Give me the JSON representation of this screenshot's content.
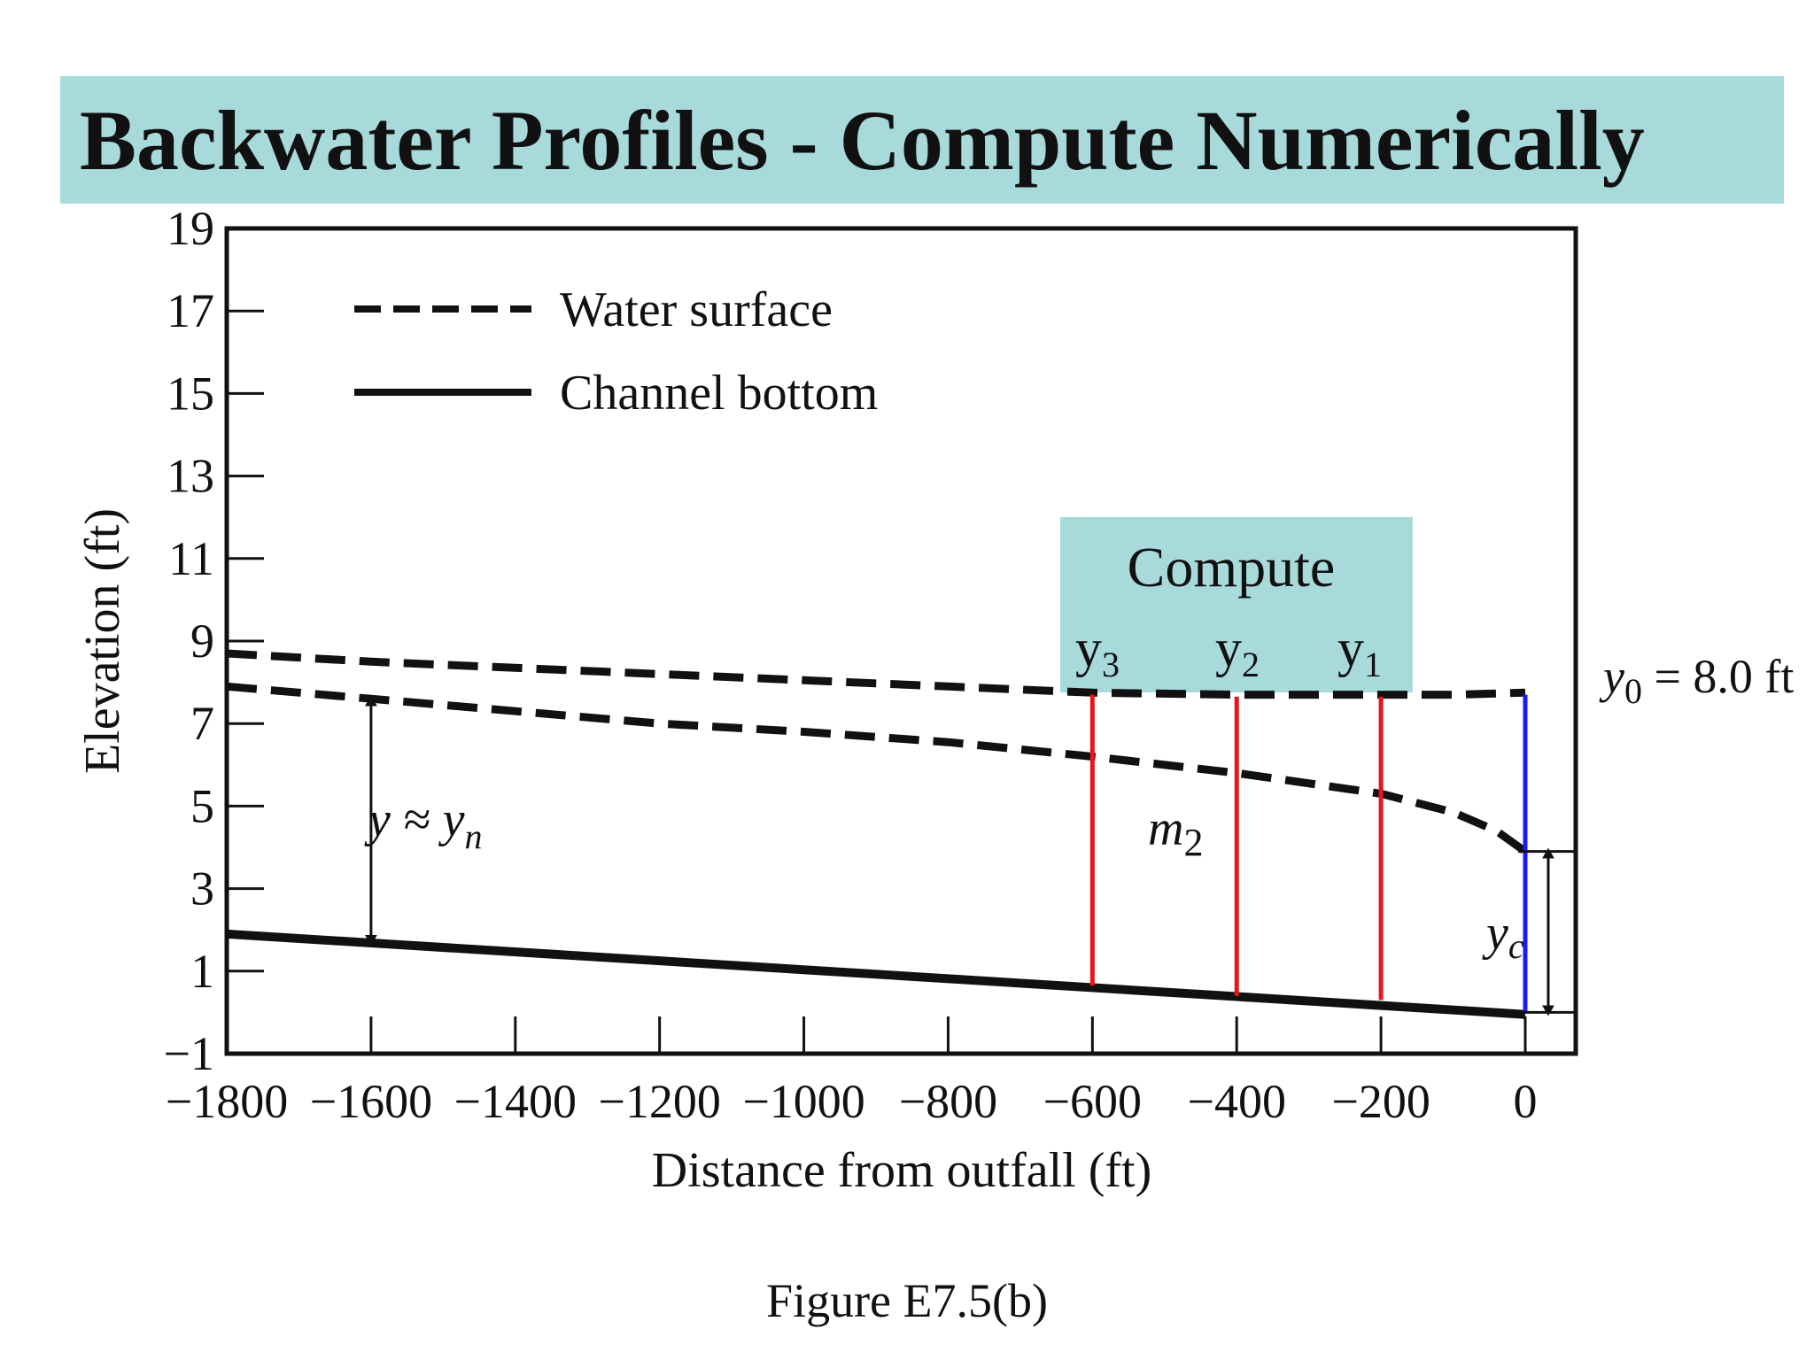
{
  "title": "Backwater Profiles - Compute Numerically",
  "caption": "Figure E7.5(b)",
  "compute_box": {
    "label": "Compute",
    "y3": "y",
    "y3_sub": "3",
    "y2": "y",
    "y2_sub": "2",
    "y1": "y",
    "y1_sub": "1",
    "background": "#a8dadb"
  },
  "annotations": {
    "y0_label": "y",
    "y0_sub": "0",
    "y0_value": " = 8.0 ft",
    "normal_label": "y ≈ y",
    "normal_sub": "n",
    "m2_label": "m",
    "m2_sub": "2",
    "yc_label": "y",
    "yc_sub": "c"
  },
  "colors": {
    "title_bg": "#a8dadb",
    "station_lines": "#e8161b",
    "outfall_line": "#1a1aff",
    "curves": "#111111"
  },
  "chart_data": {
    "type": "line",
    "xlabel": "Distance from outfall (ft)",
    "ylabel": "Elevation (ft)",
    "xlim": [
      -1800,
      0
    ],
    "ylim": [
      -1,
      19
    ],
    "x_ticks": [
      -1800,
      -1600,
      -1400,
      -1200,
      -1000,
      -800,
      -600,
      -400,
      -200,
      0
    ],
    "x_tick_labels": [
      "−1800",
      "−1600",
      "−1400",
      "−1200",
      "−1000",
      "−800",
      "−600",
      "−400",
      "−200",
      "0"
    ],
    "y_ticks": [
      -1,
      1,
      3,
      5,
      7,
      9,
      11,
      13,
      15,
      17,
      19
    ],
    "y_tick_labels": [
      "−1",
      "1",
      "3",
      "5",
      "7",
      "9",
      "11",
      "13",
      "15",
      "17",
      "19"
    ],
    "legend": [
      {
        "label": "Water surface",
        "style": "dashed"
      },
      {
        "label": "Channel bottom",
        "style": "solid"
      }
    ],
    "legend_position": "top-left",
    "series": [
      {
        "name": "Water surface",
        "style": "dashed",
        "x": [
          -1800,
          -1600,
          -1400,
          -1200,
          -1000,
          -800,
          -600,
          -400,
          -200,
          -100,
          0
        ],
        "y": [
          8.7,
          8.5,
          8.35,
          8.2,
          8.05,
          7.9,
          7.75,
          7.7,
          7.7,
          7.7,
          7.75
        ]
      },
      {
        "style": "dashed",
        "x": [
          -1800,
          -1600,
          -1400,
          -1200,
          -1000,
          -800,
          -600,
          -400,
          -200,
          -100,
          -40,
          0
        ],
        "y": [
          7.9,
          7.6,
          7.3,
          7.0,
          6.8,
          6.55,
          6.2,
          5.8,
          5.3,
          4.85,
          4.4,
          3.9
        ]
      },
      {
        "name": "Channel bottom",
        "style": "solid",
        "x": [
          -1800,
          0
        ],
        "y": [
          1.9,
          -0.05
        ]
      }
    ],
    "vertical_markers": [
      {
        "label": "y3",
        "x": -600,
        "y_bottom": 0.65,
        "y_top": 7.7,
        "color": "#e8161b"
      },
      {
        "label": "y2",
        "x": -400,
        "y_bottom": 0.4,
        "y_top": 7.65,
        "color": "#e8161b"
      },
      {
        "label": "y1",
        "x": -200,
        "y_bottom": 0.3,
        "y_top": 7.65,
        "color": "#e8161b"
      },
      {
        "label": "y0",
        "x": 0,
        "y_bottom": 0,
        "y_top": 7.7,
        "color": "#1a1aff"
      }
    ]
  }
}
